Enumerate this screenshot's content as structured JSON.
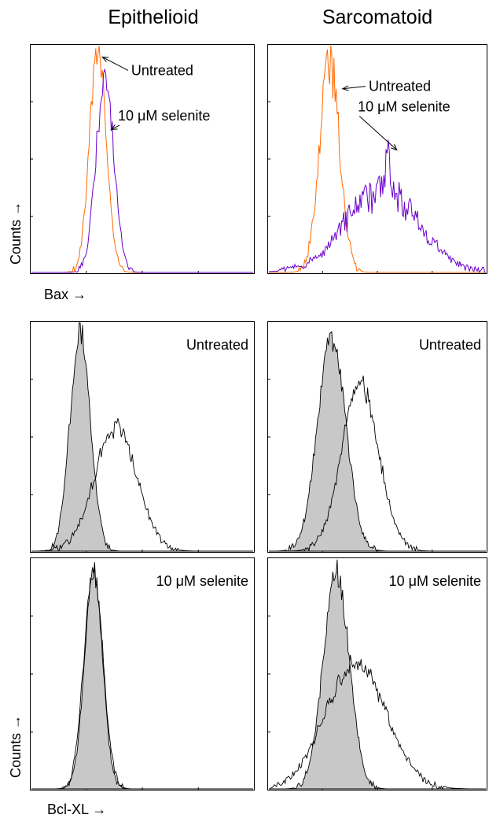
{
  "column_titles": [
    "Epithelioid",
    "Sarcomatoid"
  ],
  "axis_labels": {
    "counts_top": "Counts →",
    "counts_bottom": "Counts →",
    "bax": "Bax →",
    "bclxl": "Bcl-XL →"
  },
  "colors": {
    "untreated": "#ff6a00",
    "selenite": "#6a00cc",
    "filled": "#c8c8c8",
    "outline": "#000000"
  },
  "chart_data": [
    {
      "type": "area",
      "panel": "Bax-Epithelioid",
      "column": "Epithelioid",
      "xlabel": "Bax →",
      "ylabel": "Counts →",
      "xlim": [
        0,
        100
      ],
      "ylim": [
        0,
        100
      ],
      "series": [
        {
          "name": "Untreated",
          "color": "#ff6a00",
          "center": 30,
          "width": 3.8,
          "peak": 97,
          "noise": 0.08
        },
        {
          "name": "10 μM selenite",
          "color": "#6a00cc",
          "center": 33,
          "width": 4.0,
          "peak": 87,
          "noise": 0.12
        }
      ],
      "annotations": [
        {
          "text": "Untreated",
          "at_x": 32,
          "at_y": 95,
          "label_x": 45,
          "label_y": 87
        },
        {
          "text": "10 μM selenite",
          "at_x": 36,
          "at_y": 63,
          "label_x": 39,
          "label_y": 67
        }
      ]
    },
    {
      "type": "area",
      "panel": "Bax-Sarcomatoid",
      "column": "Sarcomatoid",
      "xlabel": "",
      "ylabel": "",
      "xlim": [
        0,
        100
      ],
      "ylim": [
        0,
        100
      ],
      "series": [
        {
          "name": "Untreated",
          "color": "#ff6a00",
          "center": 28,
          "width": 4.6,
          "peak": 93,
          "noise": 0.12
        },
        {
          "name": "10 μM selenite",
          "color": "#6a00cc",
          "center": 52,
          "width": 17,
          "peak": 36,
          "noise": 0.22,
          "spike_x": 55,
          "spike_y": 58
        }
      ],
      "annotations": [
        {
          "text": "Untreated",
          "at_x": 34,
          "at_y": 81,
          "label_x": 46,
          "label_y": 80
        },
        {
          "text": "10 μM selenite",
          "at_x": 59,
          "at_y": 54,
          "label_x": 41,
          "label_y": 71
        }
      ]
    },
    {
      "type": "area",
      "panel": "BclXL-Epithelioid-Untreated",
      "column": "Epithelioid",
      "title": "Untreated",
      "xlim": [
        0,
        100
      ],
      "ylim": [
        0,
        100
      ],
      "filled": {
        "center": 22,
        "width": 4.6,
        "peak": 96,
        "noise": 0.05
      },
      "outline": {
        "center": 38,
        "width": 9.5,
        "peak": 54,
        "noise": 0.07
      }
    },
    {
      "type": "area",
      "panel": "BclXL-Sarcomatoid-Untreated",
      "column": "Sarcomatoid",
      "title": "Untreated",
      "xlim": [
        0,
        100
      ],
      "ylim": [
        0,
        100
      ],
      "filled": {
        "center": 29,
        "width": 6.5,
        "peak": 93,
        "noise": 0.06
      },
      "outline": {
        "center": 42,
        "width": 8.5,
        "peak": 73,
        "noise": 0.07
      }
    },
    {
      "type": "area",
      "panel": "BclXL-Epithelioid-Selenite",
      "column": "Epithelioid",
      "title": "10 μM selenite",
      "xlabel": "Bcl-XL →",
      "ylabel": "Counts →",
      "xlim": [
        0,
        100
      ],
      "ylim": [
        0,
        100
      ],
      "filled": {
        "center": 28,
        "width": 4.0,
        "peak": 96,
        "noise": 0.05
      },
      "outline": {
        "center": 28,
        "width": 4.3,
        "peak": 94,
        "noise": 0.05
      }
    },
    {
      "type": "area",
      "panel": "BclXL-Sarcomatoid-Selenite",
      "column": "Sarcomatoid",
      "title": "10 μM selenite",
      "xlim": [
        0,
        100
      ],
      "ylim": [
        0,
        100
      ],
      "filled": {
        "center": 31,
        "width": 6.0,
        "peak": 95,
        "noise": 0.06
      },
      "outline": {
        "center": 40,
        "width": 14,
        "peak": 54,
        "noise": 0.08
      }
    }
  ]
}
